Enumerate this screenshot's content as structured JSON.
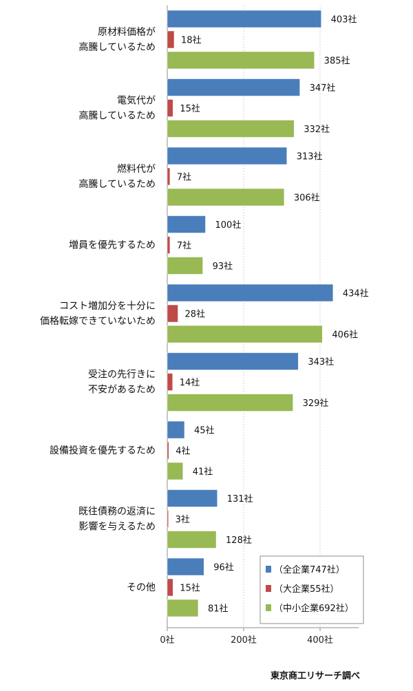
{
  "chart_data": {
    "type": "bar",
    "orientation": "horizontal",
    "unit_suffix": "社",
    "categories": [
      [
        "原材料価格が",
        "高騰しているため"
      ],
      [
        "電気代が",
        "高騰しているため"
      ],
      [
        "燃料代が",
        "高騰しているため"
      ],
      [
        "増員を優先するため"
      ],
      [
        "コスト増加分を十分に",
        "価格転嫁できていないため"
      ],
      [
        "受注の先行きに",
        "不安があるため"
      ],
      [
        "設備投資を優先するため"
      ],
      [
        "既往債務の返済に",
        "影響を与えるため"
      ],
      [
        "その他"
      ]
    ],
    "series": [
      {
        "name": "（全企業747社）",
        "color": "#4a7ebb",
        "values": [
          403,
          347,
          313,
          100,
          434,
          343,
          45,
          131,
          96
        ]
      },
      {
        "name": "（大企業55社）",
        "color": "#be4b48",
        "values": [
          18,
          15,
          7,
          7,
          28,
          14,
          4,
          3,
          15
        ]
      },
      {
        "name": "（中小企業692社）",
        "color": "#98b954",
        "values": [
          385,
          332,
          306,
          93,
          406,
          329,
          41,
          128,
          81
        ]
      }
    ],
    "xlim": [
      0,
      500
    ],
    "xticks": [
      0,
      200,
      400
    ],
    "xtick_labels": [
      "0社",
      "200社",
      "400社"
    ],
    "grid": true,
    "legend": "bottom-right"
  },
  "source": "東京商工リサーチ調べ"
}
